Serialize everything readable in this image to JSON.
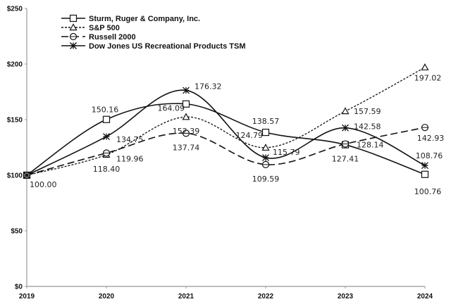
{
  "chart_data": {
    "type": "line",
    "title": "",
    "xlabel": "",
    "ylabel": "",
    "x": [
      "2019",
      "2020",
      "2021",
      "2022",
      "2023",
      "2024"
    ],
    "ylim": [
      0,
      250
    ],
    "yticks": [
      0,
      50,
      100,
      150,
      200,
      250
    ],
    "ytick_labels": [
      "$0",
      "$50",
      "$100",
      "$150",
      "$200",
      "$250"
    ],
    "grid": false,
    "legend_position": "top-left",
    "series": [
      {
        "name": "Sturm, Ruger & Company, Inc.",
        "marker": "square",
        "dash": "solid",
        "values": [
          100.0,
          150.16,
          164.09,
          138.57,
          127.41,
          100.76
        ],
        "labels": [
          "100.00",
          "150.16",
          "164.09",
          "138.57",
          "127.41",
          "100.76"
        ]
      },
      {
        "name": "S&P 500",
        "marker": "triangle",
        "dash": "dotted",
        "values": [
          100.0,
          118.4,
          152.39,
          124.79,
          157.59,
          197.02
        ],
        "labels": [
          "",
          "118.40",
          "152.39",
          "124.79",
          "157.59",
          "197.02"
        ]
      },
      {
        "name": "Russell 2000",
        "marker": "circle",
        "dash": "dashed",
        "values": [
          100.0,
          119.96,
          137.74,
          109.59,
          128.14,
          142.93
        ],
        "labels": [
          "",
          "119.96",
          "137.74",
          "109.59",
          "128.14",
          "142.93"
        ]
      },
      {
        "name": "Dow Jones US Recreational Products TSM",
        "marker": "star",
        "dash": "solid",
        "values": [
          100.0,
          134.75,
          176.32,
          115.79,
          142.58,
          108.76
        ],
        "labels": [
          "",
          "134.75",
          "176.32",
          "115.79",
          "142.58",
          "108.76"
        ]
      }
    ]
  }
}
